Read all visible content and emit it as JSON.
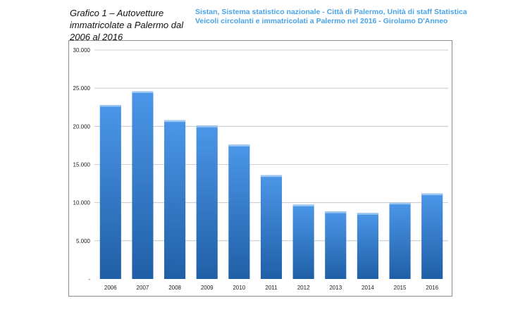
{
  "caption": {
    "line1": "Grafico 1 – Autovetture",
    "line2": "immatricolate a Palermo dal",
    "line3": "2006 al 2016"
  },
  "source": {
    "line1": "Sistan, Sistema statistico nazionale - Città di Palermo, Unità di staff Statistica",
    "line2": "Veicoli circolanti e immatricolati a Palermo nel 2016  - Girolamo D'Anneo"
  },
  "colors": {
    "bar_top": "#4c96e8",
    "bar_bottom": "#1f5fa6",
    "grid": "#bfbfbf",
    "source_text": "#4aa3e6"
  },
  "chart_data": {
    "type": "bar",
    "categories": [
      "2006",
      "2007",
      "2008",
      "2009",
      "2010",
      "2011",
      "2012",
      "2013",
      "2014",
      "2015",
      "2016"
    ],
    "values": [
      22800,
      24600,
      20800,
      20100,
      17600,
      13600,
      9750,
      8850,
      8650,
      10000,
      11200
    ],
    "ylim": [
      0,
      30000
    ],
    "yticks": [
      0,
      5000,
      10000,
      15000,
      20000,
      25000,
      30000
    ],
    "ytick_labels": [
      "-",
      "5.000",
      "10.000",
      "15.000",
      "20.000",
      "25.000",
      "30.000"
    ],
    "grid": true,
    "legend": "none"
  }
}
